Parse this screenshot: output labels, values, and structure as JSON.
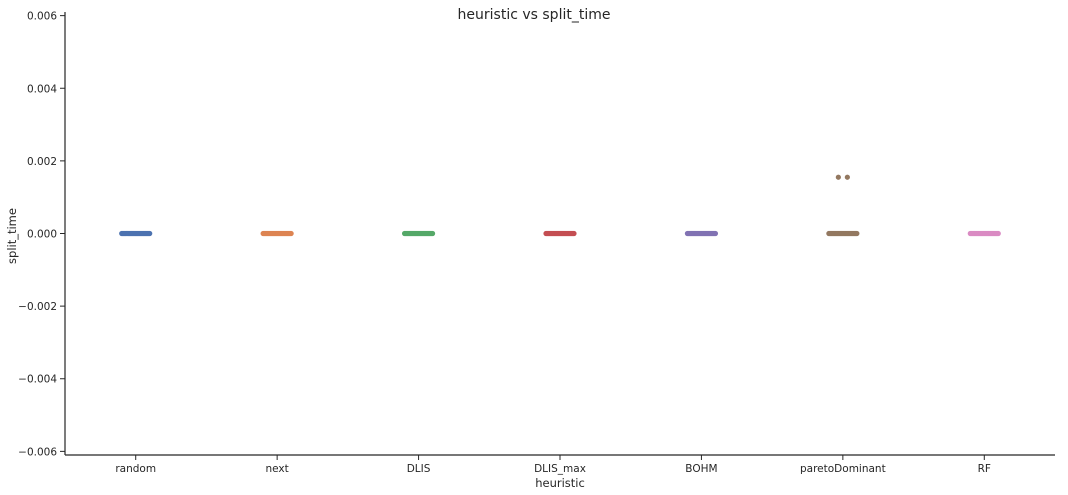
{
  "chart_data": {
    "type": "scatter",
    "subtype": "strip",
    "title": "heuristic vs split_time",
    "xlabel": "heuristic",
    "ylabel": "split_time",
    "categories": [
      "random",
      "next",
      "DLIS",
      "DLIS_max",
      "BOHM",
      "paretoDominant",
      "RF"
    ],
    "ylim": [
      -0.0061,
      0.0061
    ],
    "yticks": [
      -0.006,
      -0.004,
      -0.002,
      0.0,
      0.002,
      0.004,
      0.006
    ],
    "ytick_labels": [
      "−0.006",
      "−0.004",
      "−0.002",
      "0.000",
      "0.002",
      "0.004",
      "0.006"
    ],
    "grid": false,
    "legend": "none",
    "series": [
      {
        "category": "random",
        "color": "#4c72b0",
        "values": [
          0.0
        ],
        "extra_points": []
      },
      {
        "category": "next",
        "color": "#dd8452",
        "values": [
          0.0
        ],
        "extra_points": []
      },
      {
        "category": "DLIS",
        "color": "#55a868",
        "values": [
          0.0
        ],
        "extra_points": []
      },
      {
        "category": "DLIS_max",
        "color": "#c44e52",
        "values": [
          0.0
        ],
        "extra_points": []
      },
      {
        "category": "BOHM",
        "color": "#8172b3",
        "values": [
          0.0
        ],
        "extra_points": []
      },
      {
        "category": "paretoDominant",
        "color": "#937860",
        "values": [
          0.0
        ],
        "extra_points": [
          0.00155,
          0.00155
        ]
      },
      {
        "category": "RF",
        "color": "#da8bc3",
        "values": [
          0.0
        ],
        "extra_points": []
      }
    ]
  }
}
